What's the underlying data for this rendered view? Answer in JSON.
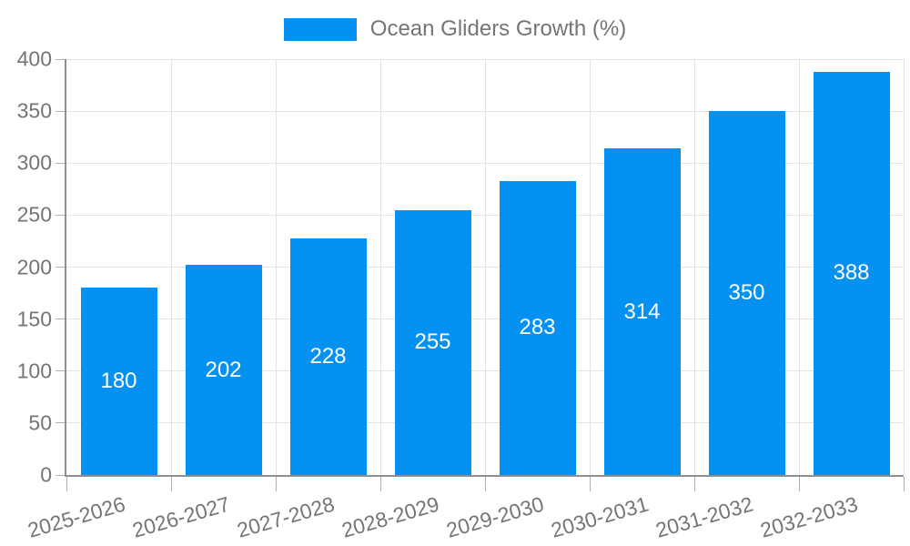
{
  "chart_data": {
    "type": "bar",
    "title": "Ocean Gliders Growth (%)",
    "categories": [
      "2025-2026",
      "2026-2027",
      "2027-2028",
      "2028-2029",
      "2029-2030",
      "2030-2031",
      "2031-2032",
      "2032-2033"
    ],
    "values": [
      180,
      202,
      228,
      255,
      283,
      314,
      350,
      388
    ],
    "xlabel": "",
    "ylabel": "",
    "ylim": [
      0,
      400
    ],
    "ytick_step": 50,
    "yticks": [
      0,
      50,
      100,
      150,
      200,
      250,
      300,
      350,
      400
    ],
    "grid": true,
    "bar_value_labels_shown": true,
    "legend_position": "top",
    "colors": {
      "bar": "#0591f2",
      "bar_label": "#ffffff",
      "grid": "#e3e3e3",
      "axis": "#8f8f8f",
      "tick": "#b0b0b0",
      "text": "#757575"
    }
  }
}
